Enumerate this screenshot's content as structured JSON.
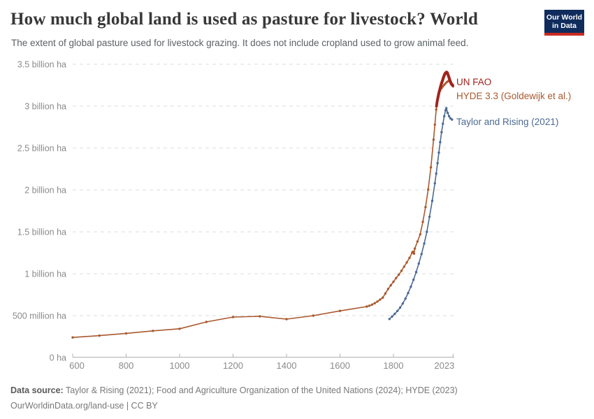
{
  "header": {
    "title": "How much global land is used as pasture for livestock? World",
    "subtitle": "The extent of global pasture used for livestock grazing. It does not include cropland used to grow animal feed.",
    "logo": {
      "line1": "Our World",
      "line2": "in Data"
    }
  },
  "chart_data": {
    "type": "line",
    "title": "How much global land is used as pasture for livestock? World",
    "unit": "million hectares",
    "grid": "horizontal-dashed",
    "legend_position": "right-of-line-ends",
    "x_axis": {
      "range": [
        600,
        2023
      ],
      "ticks": [
        600,
        800,
        1000,
        1200,
        1400,
        1600,
        1800,
        2023
      ]
    },
    "y_axis": {
      "range_million_ha": [
        0,
        3500
      ],
      "ticks": [
        {
          "v": 0,
          "label": "0 ha"
        },
        {
          "v": 500,
          "label": "500 million ha"
        },
        {
          "v": 1000,
          "label": "1 billion ha"
        },
        {
          "v": 1500,
          "label": "1.5 billion ha"
        },
        {
          "v": 2000,
          "label": "2 billion ha"
        },
        {
          "v": 2500,
          "label": "2.5 billion ha"
        },
        {
          "v": 3000,
          "label": "3 billion ha"
        },
        {
          "v": 3500,
          "label": "3.5 billion ha"
        }
      ]
    },
    "series": [
      {
        "id": "hyde",
        "name": "HYDE 3.3 (Goldewijk et al.)",
        "color": "#a9592f",
        "points_year_million_ha": [
          [
            600,
            240
          ],
          [
            700,
            262
          ],
          [
            800,
            288
          ],
          [
            900,
            318
          ],
          [
            1000,
            343
          ],
          [
            1100,
            425
          ],
          [
            1200,
            483
          ],
          [
            1300,
            492
          ],
          [
            1400,
            458
          ],
          [
            1500,
            500
          ],
          [
            1600,
            557
          ],
          [
            1700,
            608
          ],
          [
            1710,
            618
          ],
          [
            1720,
            632
          ],
          [
            1730,
            648
          ],
          [
            1740,
            668
          ],
          [
            1750,
            692
          ],
          [
            1760,
            715
          ],
          [
            1770,
            765
          ],
          [
            1780,
            818
          ],
          [
            1790,
            862
          ],
          [
            1800,
            905
          ],
          [
            1810,
            948
          ],
          [
            1820,
            990
          ],
          [
            1830,
            1035
          ],
          [
            1840,
            1085
          ],
          [
            1850,
            1135
          ],
          [
            1860,
            1190
          ],
          [
            1870,
            1252
          ],
          [
            1873,
            1263
          ],
          [
            1877,
            1240
          ],
          [
            1880,
            1300
          ],
          [
            1890,
            1385
          ],
          [
            1900,
            1470
          ],
          [
            1910,
            1620
          ],
          [
            1920,
            1795
          ],
          [
            1930,
            2005
          ],
          [
            1940,
            2270
          ],
          [
            1950,
            2600
          ],
          [
            1955,
            2780
          ],
          [
            1960,
            2960
          ],
          [
            1965,
            3080
          ],
          [
            1970,
            3150
          ],
          [
            1975,
            3190
          ],
          [
            1980,
            3215
          ],
          [
            1985,
            3235
          ],
          [
            1990,
            3255
          ],
          [
            1995,
            3272
          ],
          [
            2000,
            3288
          ],
          [
            2005,
            3298
          ],
          [
            2010,
            3300
          ],
          [
            2015,
            3288
          ],
          [
            2020,
            3260
          ],
          [
            2023,
            3235
          ]
        ]
      },
      {
        "id": "taylor",
        "name": "Taylor and Rising (2021)",
        "color": "#4c6a92",
        "points_year_million_ha": [
          [
            1785,
            460
          ],
          [
            1795,
            490
          ],
          [
            1805,
            522
          ],
          [
            1815,
            556
          ],
          [
            1825,
            596
          ],
          [
            1835,
            645
          ],
          [
            1845,
            703
          ],
          [
            1855,
            770
          ],
          [
            1865,
            845
          ],
          [
            1875,
            928
          ],
          [
            1885,
            1020
          ],
          [
            1895,
            1122
          ],
          [
            1905,
            1235
          ],
          [
            1915,
            1360
          ],
          [
            1925,
            1500
          ],
          [
            1935,
            1680
          ],
          [
            1945,
            1870
          ],
          [
            1955,
            2080
          ],
          [
            1960,
            2195
          ],
          [
            1965,
            2320
          ],
          [
            1970,
            2445
          ],
          [
            1975,
            2570
          ],
          [
            1980,
            2690
          ],
          [
            1985,
            2790
          ],
          [
            1990,
            2880
          ],
          [
            1995,
            2950
          ],
          [
            1998,
            2975
          ],
          [
            2003,
            2920
          ],
          [
            2008,
            2880
          ],
          [
            2013,
            2855
          ],
          [
            2019,
            2840
          ]
        ]
      },
      {
        "id": "fao",
        "name": "UN FAO",
        "color": "#a0241d",
        "points_year_million_ha": [
          [
            1961,
            3000
          ],
          [
            1962,
            3022
          ],
          [
            1963,
            3042
          ],
          [
            1964,
            3060
          ],
          [
            1965,
            3078
          ],
          [
            1966,
            3094
          ],
          [
            1967,
            3110
          ],
          [
            1968,
            3126
          ],
          [
            1969,
            3141
          ],
          [
            1970,
            3155
          ],
          [
            1971,
            3168
          ],
          [
            1972,
            3180
          ],
          [
            1973,
            3192
          ],
          [
            1974,
            3204
          ],
          [
            1975,
            3216
          ],
          [
            1976,
            3228
          ],
          [
            1977,
            3240
          ],
          [
            1978,
            3252
          ],
          [
            1979,
            3263
          ],
          [
            1980,
            3273
          ],
          [
            1981,
            3282
          ],
          [
            1982,
            3291
          ],
          [
            1983,
            3300
          ],
          [
            1984,
            3310
          ],
          [
            1985,
            3320
          ],
          [
            1986,
            3330
          ],
          [
            1987,
            3340
          ],
          [
            1988,
            3350
          ],
          [
            1989,
            3358
          ],
          [
            1990,
            3366
          ],
          [
            1991,
            3374
          ],
          [
            1992,
            3381
          ],
          [
            1993,
            3387
          ],
          [
            1994,
            3392
          ],
          [
            1995,
            3396
          ],
          [
            1996,
            3399
          ],
          [
            1997,
            3402
          ],
          [
            1998,
            3404
          ],
          [
            1999,
            3405
          ],
          [
            2000,
            3404
          ],
          [
            2001,
            3400
          ],
          [
            2002,
            3394
          ],
          [
            2003,
            3386
          ],
          [
            2004,
            3377
          ],
          [
            2005,
            3368
          ],
          [
            2006,
            3358
          ],
          [
            2007,
            3348
          ],
          [
            2008,
            3338
          ],
          [
            2009,
            3329
          ],
          [
            2010,
            3320
          ],
          [
            2011,
            3311
          ],
          [
            2012,
            3302
          ],
          [
            2013,
            3293
          ],
          [
            2014,
            3285
          ],
          [
            2015,
            3277
          ],
          [
            2016,
            3270
          ],
          [
            2017,
            3264
          ],
          [
            2018,
            3259
          ],
          [
            2019,
            3255
          ],
          [
            2020,
            3252
          ],
          [
            2021,
            3250
          ],
          [
            2022,
            3248
          ]
        ]
      }
    ],
    "colors": {
      "un_fao": "#a0241d",
      "hyde": "#a9592f",
      "taylor_rising": "#4c6a92"
    }
  },
  "footer": {
    "datasource_label": "Data source:",
    "datasource_text": " Taylor & Rising (2021); Food and Agriculture Organization of the United Nations (2024); HYDE (2023)",
    "url_line": "OurWorldinData.org/land-use | CC BY"
  }
}
